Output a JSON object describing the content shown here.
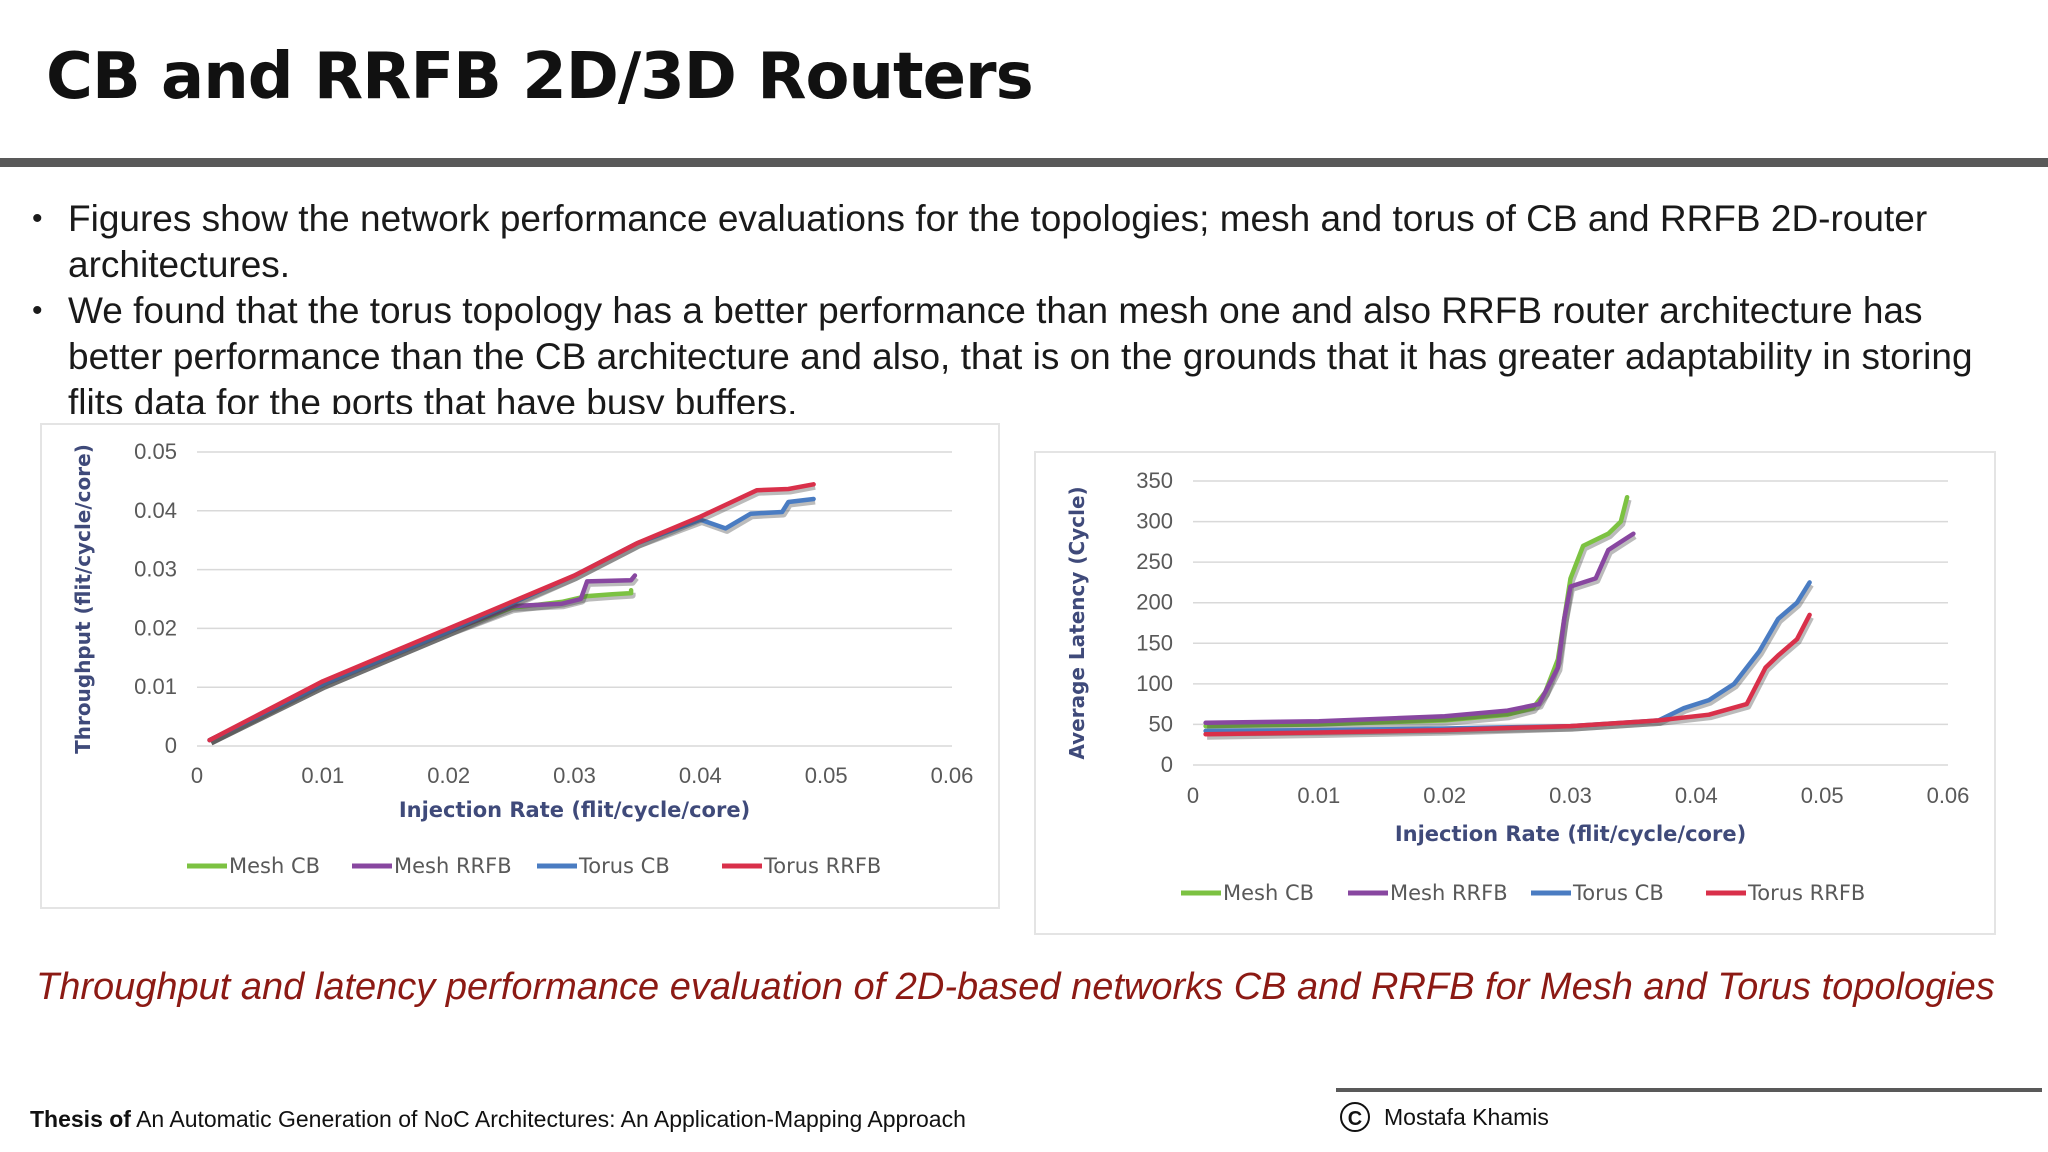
{
  "slide": {
    "title": "CB and RRFB 2D/3D Routers",
    "bullets": [
      "Figures show the network performance evaluations for the topologies; mesh and torus of CB and RRFB 2D-router architectures.",
      "We found that the torus topology has a better performance than mesh one and also RRFB router architecture has better performance than the CB architecture and also, that is on the grounds that it has greater adaptability in storing flits data for the ports that have busy buffers."
    ],
    "caption": "Throughput and latency performance evaluation of 2D-based networks CB and RRFB for Mesh and Torus topologies",
    "footer": {
      "thesis_prefix": "Thesis of",
      "thesis_title": "An Automatic Generation of NoC Architectures: An Application-Mapping Approach",
      "author": "Mostafa Khamis",
      "copyright_symbol": "C"
    }
  },
  "chart_data": [
    {
      "type": "line",
      "xlabel": "Injection Rate (flit/cycle/core)",
      "ylabel": "Throughput (flit/cycle/core)",
      "xlim": [
        0,
        0.06
      ],
      "ylim": [
        0,
        0.05
      ],
      "xticks": [
        "0",
        "0.01",
        "0.02",
        "0.03",
        "0.04",
        "0.05",
        "0.06"
      ],
      "yticks": [
        "0",
        "0.01",
        "0.02",
        "0.03",
        "0.04",
        "0.05"
      ],
      "grid": "horizontal",
      "legend": "bottom",
      "series": [
        {
          "name": "Mesh CB",
          "color": "#7cc242",
          "points": [
            [
              0.001,
              0.001
            ],
            [
              0.01,
              0.0105
            ],
            [
              0.02,
              0.0195
            ],
            [
              0.025,
              0.0235
            ],
            [
              0.029,
              0.0245
            ],
            [
              0.031,
              0.0255
            ],
            [
              0.033,
              0.0258
            ],
            [
              0.0345,
              0.026
            ],
            [
              0.0345,
              0.0265
            ]
          ]
        },
        {
          "name": "Mesh RRFB",
          "color": "#8847a0",
          "points": [
            [
              0.001,
              0.001
            ],
            [
              0.01,
              0.0105
            ],
            [
              0.02,
              0.0195
            ],
            [
              0.025,
              0.0238
            ],
            [
              0.029,
              0.0242
            ],
            [
              0.0305,
              0.025
            ],
            [
              0.031,
              0.028
            ],
            [
              0.0345,
              0.0282
            ],
            [
              0.0348,
              0.029
            ]
          ]
        },
        {
          "name": "Torus CB",
          "color": "#4a7cc2",
          "points": [
            [
              0.001,
              0.001
            ],
            [
              0.01,
              0.0105
            ],
            [
              0.02,
              0.0195
            ],
            [
              0.03,
              0.029
            ],
            [
              0.035,
              0.0345
            ],
            [
              0.04,
              0.0385
            ],
            [
              0.042,
              0.037
            ],
            [
              0.044,
              0.0395
            ],
            [
              0.0465,
              0.0398
            ],
            [
              0.047,
              0.0415
            ],
            [
              0.049,
              0.042
            ]
          ]
        },
        {
          "name": "Torus RRFB",
          "color": "#d9304a",
          "points": [
            [
              0.001,
              0.001
            ],
            [
              0.01,
              0.011
            ],
            [
              0.02,
              0.02
            ],
            [
              0.03,
              0.029
            ],
            [
              0.035,
              0.0345
            ],
            [
              0.04,
              0.039
            ],
            [
              0.0445,
              0.0435
            ],
            [
              0.047,
              0.0437
            ],
            [
              0.049,
              0.0445
            ]
          ]
        }
      ]
    },
    {
      "type": "line",
      "xlabel": "Injection Rate (flit/cycle/core)",
      "ylabel": "Average Latency (Cycle)",
      "xlim": [
        0,
        0.06
      ],
      "ylim": [
        0,
        350
      ],
      "xticks": [
        "0",
        "0.01",
        "0.02",
        "0.03",
        "0.04",
        "0.05",
        "0.06"
      ],
      "yticks": [
        "0",
        "50",
        "100",
        "150",
        "200",
        "250",
        "300",
        "350"
      ],
      "grid": "horizontal",
      "legend": "bottom",
      "series": [
        {
          "name": "Mesh CB",
          "color": "#7cc242",
          "points": [
            [
              0.001,
              48
            ],
            [
              0.01,
              50
            ],
            [
              0.02,
              55
            ],
            [
              0.025,
              62
            ],
            [
              0.027,
              70
            ],
            [
              0.028,
              90
            ],
            [
              0.029,
              130
            ],
            [
              0.0295,
              180
            ],
            [
              0.03,
              230
            ],
            [
              0.031,
              270
            ],
            [
              0.033,
              285
            ],
            [
              0.034,
              300
            ],
            [
              0.0345,
              330
            ]
          ]
        },
        {
          "name": "Mesh RRFB",
          "color": "#8847a0",
          "points": [
            [
              0.001,
              52
            ],
            [
              0.01,
              54
            ],
            [
              0.02,
              60
            ],
            [
              0.025,
              67
            ],
            [
              0.0275,
              75
            ],
            [
              0.029,
              120
            ],
            [
              0.0295,
              180
            ],
            [
              0.03,
              220
            ],
            [
              0.032,
              230
            ],
            [
              0.033,
              265
            ],
            [
              0.034,
              275
            ],
            [
              0.035,
              285
            ]
          ]
        },
        {
          "name": "Torus CB",
          "color": "#4a7cc2",
          "points": [
            [
              0.001,
              42
            ],
            [
              0.01,
              43
            ],
            [
              0.02,
              45
            ],
            [
              0.03,
              48
            ],
            [
              0.037,
              55
            ],
            [
              0.039,
              70
            ],
            [
              0.041,
              80
            ],
            [
              0.043,
              100
            ],
            [
              0.045,
              140
            ],
            [
              0.0465,
              180
            ],
            [
              0.048,
              200
            ],
            [
              0.049,
              225
            ]
          ]
        },
        {
          "name": "Torus RRFB",
          "color": "#d9304a",
          "points": [
            [
              0.001,
              38
            ],
            [
              0.01,
              40
            ],
            [
              0.02,
              43
            ],
            [
              0.03,
              48
            ],
            [
              0.037,
              55
            ],
            [
              0.041,
              62
            ],
            [
              0.044,
              75
            ],
            [
              0.0455,
              120
            ],
            [
              0.0465,
              135
            ],
            [
              0.048,
              155
            ],
            [
              0.049,
              185
            ]
          ]
        }
      ]
    }
  ]
}
